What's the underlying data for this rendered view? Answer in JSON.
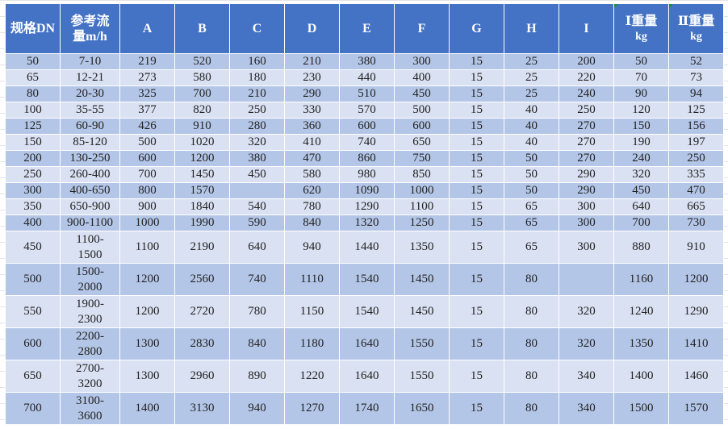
{
  "colors": {
    "header": "#4472c4",
    "row_dark": "#b4c6e7",
    "row_light": "#d9e1f2",
    "header_text": "#ffffff"
  },
  "table": {
    "headers": [
      {
        "label": "规格DN"
      },
      {
        "label": "参考流量m/h"
      },
      {
        "label": "A"
      },
      {
        "label": "B"
      },
      {
        "label": "C"
      },
      {
        "label": "D"
      },
      {
        "label": "E"
      },
      {
        "label": "F"
      },
      {
        "label": "G"
      },
      {
        "label": "H"
      },
      {
        "label": "I"
      },
      {
        "label": "Ⅰ重量",
        "unit": "kg"
      },
      {
        "label": "Ⅱ重量",
        "unit": "kg"
      }
    ],
    "rows": [
      [
        "50",
        "7-10",
        "219",
        "520",
        "160",
        "210",
        "380",
        "300",
        "15",
        "25",
        "200",
        "50",
        "52"
      ],
      [
        "65",
        "12-21",
        "273",
        "580",
        "180",
        "230",
        "440",
        "400",
        "15",
        "25",
        "220",
        "70",
        "73"
      ],
      [
        "80",
        "20-30",
        "325",
        "700",
        "210",
        "290",
        "510",
        "450",
        "15",
        "25",
        "240",
        "90",
        "94"
      ],
      [
        "100",
        "35-55",
        "377",
        "820",
        "250",
        "330",
        "570",
        "500",
        "15",
        "40",
        "250",
        "120",
        "125"
      ],
      [
        "125",
        "60-90",
        "426",
        "910",
        "280",
        "360",
        "600",
        "600",
        "15",
        "40",
        "270",
        "150",
        "156"
      ],
      [
        "150",
        "85-120",
        "500",
        "1020",
        "320",
        "410",
        "740",
        "650",
        "15",
        "40",
        "270",
        "190",
        "197"
      ],
      [
        "200",
        "130-250",
        "600",
        "1200",
        "380",
        "470",
        "860",
        "750",
        "15",
        "50",
        "270",
        "240",
        "250"
      ],
      [
        "250",
        "260-400",
        "700",
        "1450",
        "450",
        "580",
        "980",
        "850",
        "15",
        "50",
        "290",
        "320",
        "335"
      ],
      [
        "300",
        "400-650",
        "800",
        "1570",
        "",
        "620",
        "1090",
        "1000",
        "15",
        "50",
        "290",
        "450",
        "470"
      ],
      [
        "350",
        "650-900",
        "900",
        "1840",
        "540",
        "780",
        "1290",
        "1100",
        "15",
        "65",
        "300",
        "640",
        "665"
      ],
      [
        "400",
        "900-1100",
        "1000",
        "1990",
        "590",
        "840",
        "1320",
        "1250",
        "15",
        "65",
        "300",
        "700",
        "730"
      ],
      [
        "450",
        "1100-1500",
        "1100",
        "2190",
        "640",
        "940",
        "1440",
        "1350",
        "15",
        "65",
        "300",
        "880",
        "910"
      ],
      [
        "500",
        "1500-2000",
        "1200",
        "2560",
        "740",
        "1110",
        "1540",
        "1450",
        "15",
        "80",
        "",
        "1160",
        "1200"
      ],
      [
        "550",
        "1900-2300",
        "1200",
        "2720",
        "780",
        "1150",
        "1540",
        "1450",
        "15",
        "80",
        "320",
        "1240",
        "1290"
      ],
      [
        "600",
        "2200-2800",
        "1300",
        "2830",
        "840",
        "1180",
        "1640",
        "1550",
        "15",
        "80",
        "320",
        "1350",
        "1410"
      ],
      [
        "650",
        "2700-3200",
        "1300",
        "2960",
        "890",
        "1220",
        "1640",
        "1550",
        "15",
        "80",
        "340",
        "1400",
        "1460"
      ],
      [
        "700",
        "3100-3600",
        "1400",
        "3130",
        "940",
        "1270",
        "1740",
        "1650",
        "15",
        "80",
        "340",
        "1500",
        "1570"
      ]
    ]
  }
}
